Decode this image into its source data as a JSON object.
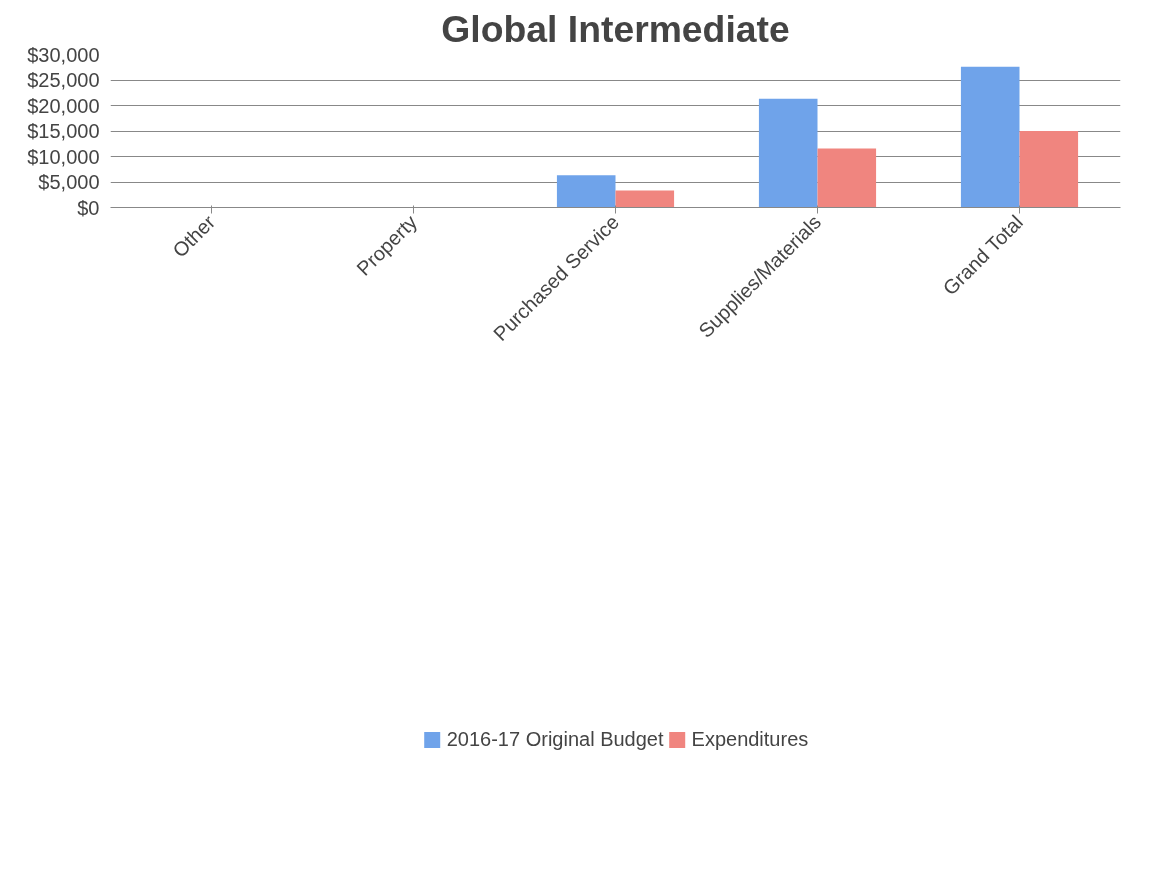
{
  "chart_data": {
    "type": "bar",
    "title": "Global Intermediate",
    "categories": [
      "Other",
      "Property",
      "Purchased Service",
      "Supplies/Materials",
      "Grand Total"
    ],
    "series": [
      {
        "name": "2016-17 Original Budget",
        "color": "#6fa3ea",
        "values": [
          0,
          0,
          6300,
          21300,
          27600
        ]
      },
      {
        "name": "Expenditures",
        "color": "#f0857f",
        "values": [
          0,
          0,
          3350,
          11550,
          15000
        ]
      }
    ],
    "ylim": [
      0,
      30000
    ],
    "yticks": [
      {
        "value": 0,
        "label": "$0"
      },
      {
        "value": 5000,
        "label": "$5,000"
      },
      {
        "value": 10000,
        "label": "$10,000"
      },
      {
        "value": 15000,
        "label": "$15,000"
      },
      {
        "value": 20000,
        "label": "$20,000"
      },
      {
        "value": 25000,
        "label": "$25,000"
      },
      {
        "value": 30000,
        "label": "$30,000"
      }
    ],
    "grid": "y",
    "legend": "bottom"
  }
}
